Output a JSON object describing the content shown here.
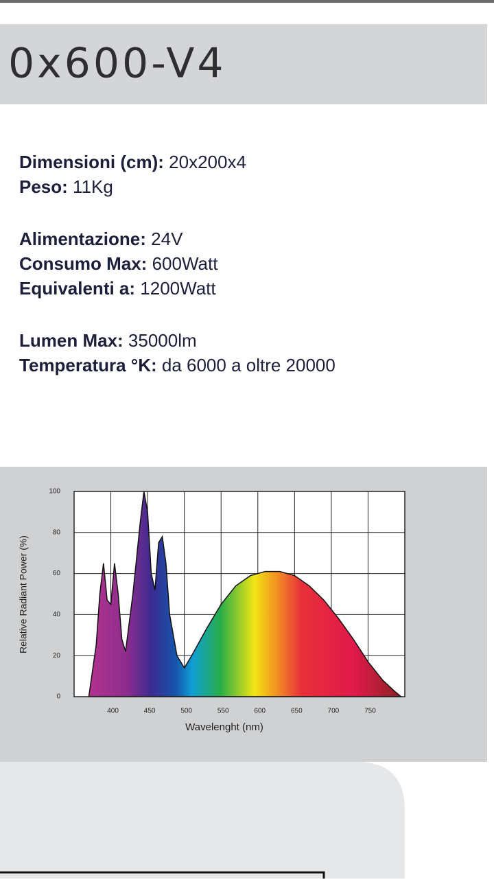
{
  "header": {
    "title": "0x600-V4"
  },
  "specs": [
    [
      {
        "label": "Dimensioni (cm):",
        "value": "20x200x4"
      },
      {
        "label": "Peso:",
        "value": "11Kg"
      }
    ],
    [
      {
        "label": "Alimentazione:",
        "value": "24V"
      },
      {
        "label": "Consumo Max:",
        "value": "600Watt"
      },
      {
        "label": "Equivalenti a:",
        "value": "1200Watt"
      }
    ],
    [
      {
        "label": "Lumen Max:",
        "value": "35000lm"
      },
      {
        "label": "Temperatura °K:",
        "value": "da 6000 a oltre 20000"
      }
    ]
  ],
  "chart_data": {
    "type": "area",
    "x_label": "Wavelenght (nm)",
    "y_label": "Relative Radiant Power (%)",
    "x": [
      370,
      380,
      385,
      390,
      395,
      400,
      405,
      410,
      415,
      420,
      430,
      440,
      445,
      450,
      455,
      460,
      465,
      470,
      475,
      480,
      490,
      500,
      510,
      530,
      550,
      570,
      590,
      610,
      630,
      650,
      670,
      690,
      710,
      730,
      750,
      770,
      785,
      795
    ],
    "values": [
      0,
      25,
      50,
      65,
      47,
      45,
      65,
      50,
      28,
      22,
      50,
      85,
      100,
      90,
      60,
      52,
      75,
      78,
      65,
      40,
      20,
      14,
      20,
      33,
      45,
      54,
      59,
      61,
      61,
      59,
      54,
      47,
      38,
      28,
      17,
      8,
      3,
      0
    ],
    "xlim": [
      350,
      800
    ],
    "xticks": [
      400,
      450,
      500,
      550,
      600,
      650,
      700,
      750
    ],
    "ylim": [
      0,
      100
    ],
    "yticks": [
      0,
      20,
      40,
      60,
      80,
      100
    ],
    "grid": true
  }
}
